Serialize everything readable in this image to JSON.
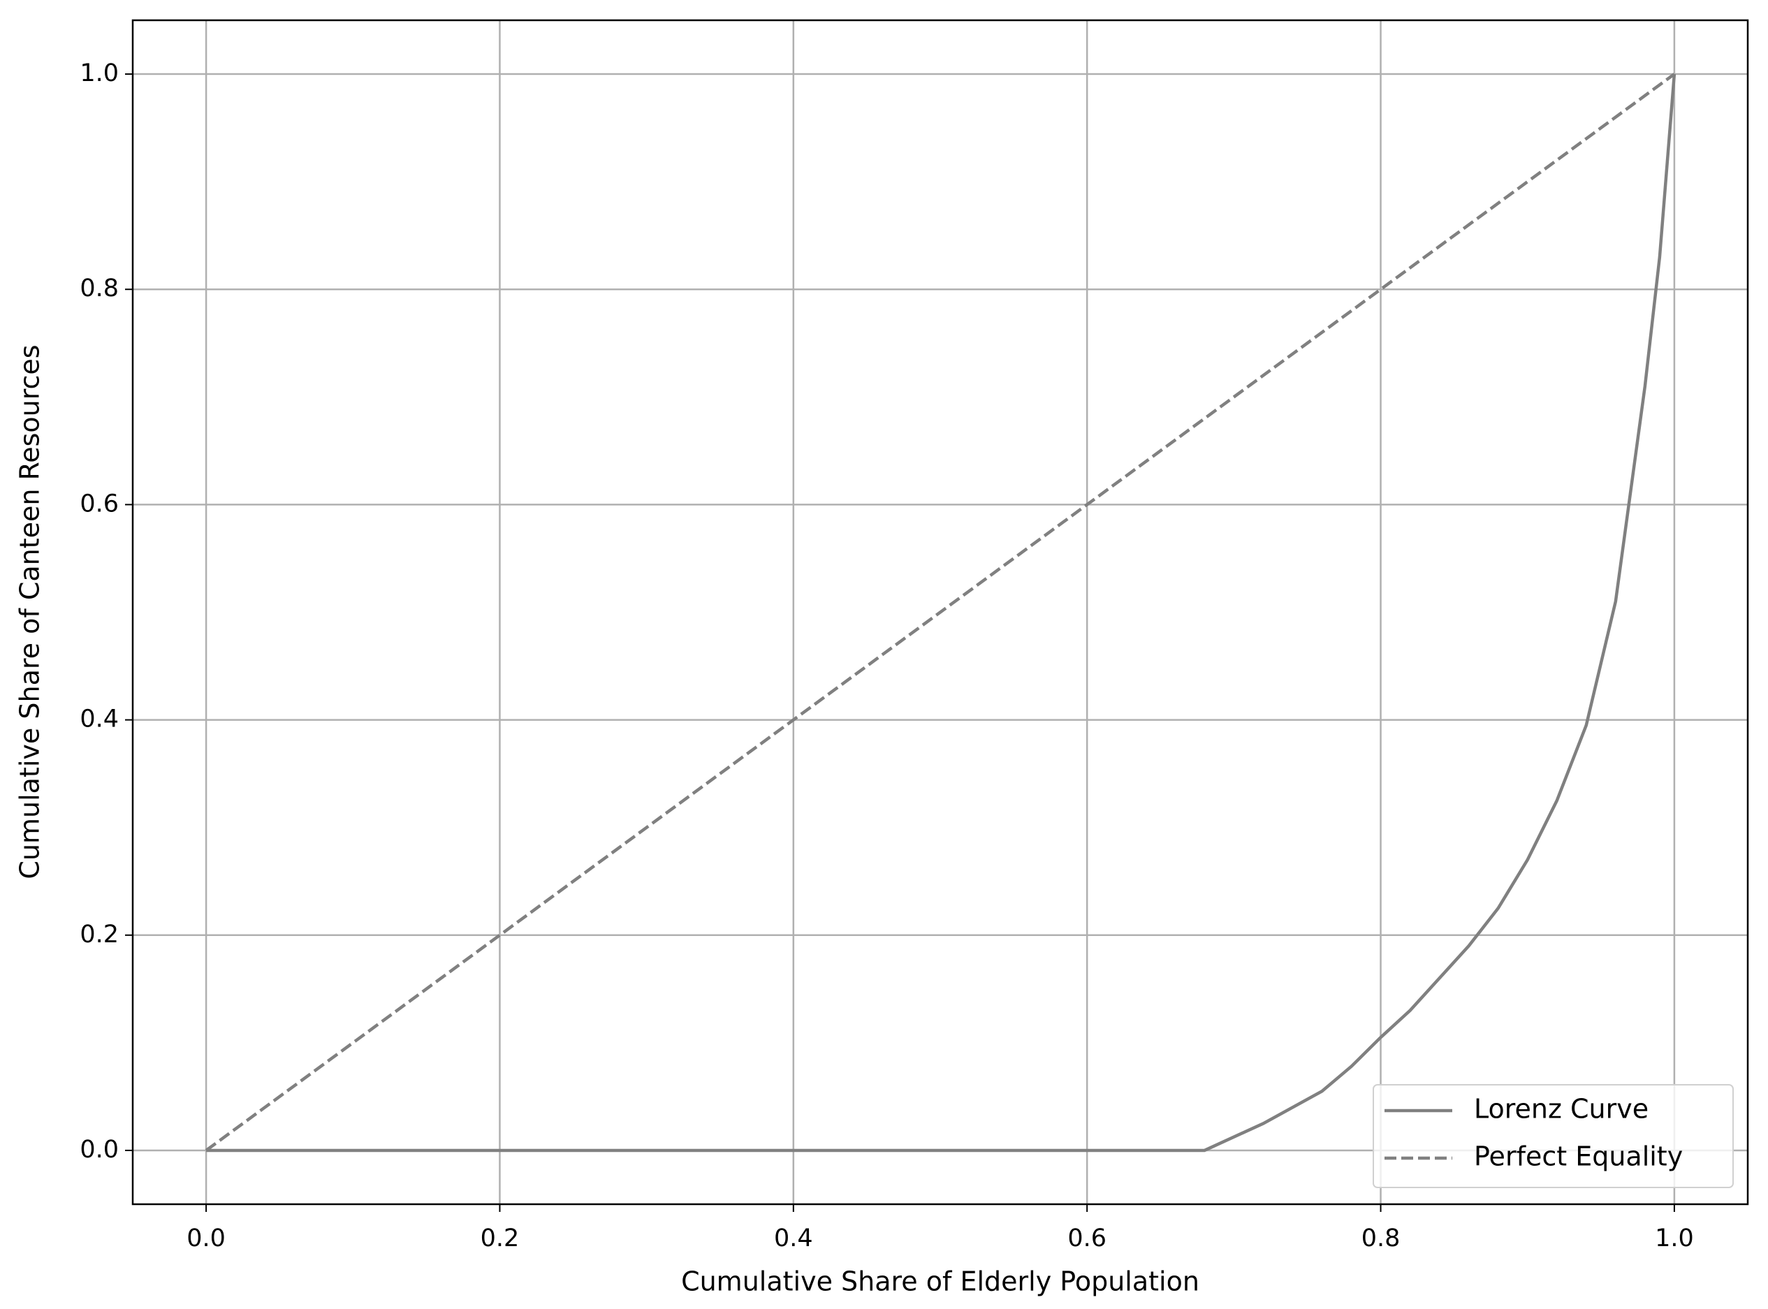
{
  "chart_data": {
    "type": "line",
    "xlabel": "Cumulative Share of Elderly Population",
    "ylabel": "Cumulative Share of Canteen Resources",
    "series": [
      {
        "name": "Lorenz Curve",
        "color": "#808080",
        "style": "solid",
        "x": [
          0,
          0.68,
          0.72,
          0.76,
          0.78,
          0.8,
          0.82,
          0.84,
          0.86,
          0.88,
          0.9,
          0.92,
          0.94,
          0.96,
          0.98,
          0.99,
          1.0
        ],
        "values": [
          0,
          0,
          0.025,
          0.055,
          0.078,
          0.105,
          0.13,
          0.16,
          0.19,
          0.225,
          0.27,
          0.325,
          0.395,
          0.51,
          0.71,
          0.83,
          1.0
        ]
      },
      {
        "name": "Perfect Equality",
        "color": "#808080",
        "style": "dashed",
        "x": [
          0,
          1
        ],
        "values": [
          0,
          1
        ]
      }
    ],
    "xlim": [
      -0.05,
      1.05
    ],
    "ylim": [
      -0.05,
      1.05
    ],
    "xticks": [
      {
        "value": 0,
        "label": "0.0"
      },
      0.2,
      0.4,
      0.6,
      0.8,
      {
        "value": 1,
        "label": "1.0"
      }
    ],
    "yticks": [
      {
        "value": 0,
        "label": "0.0"
      },
      0.2,
      0.4,
      0.6,
      0.8,
      {
        "value": 1,
        "label": "1.0"
      }
    ],
    "grid": true,
    "legend": "lower right"
  }
}
